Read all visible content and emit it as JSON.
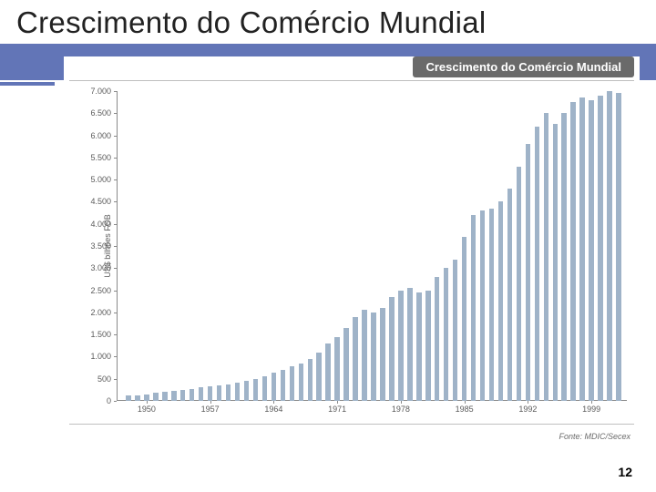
{
  "slide": {
    "title": "Crescimento do Comércio Mundial",
    "page_number": "12",
    "header_band_color": "#6275b7",
    "background_color": "#ffffff"
  },
  "chart": {
    "type": "bar",
    "title_pill": "Crescimento do Comércio Mundial",
    "title_pill_bg": "#6a6a6a",
    "title_pill_text_color": "#ffffff",
    "y_axis_label": "US$ bilhões FOB",
    "source": "Fonte: MDIC/Secex",
    "bar_color": "#9fb3c8",
    "axis_color": "#8a8a8a",
    "tick_label_color": "#5a5a5a",
    "tick_label_fontsize": 9,
    "ylim": [
      0,
      7000
    ],
    "ytick_step": 500,
    "xtick_years": [
      1950,
      1957,
      1964,
      1971,
      1978,
      1985,
      1992,
      1999
    ],
    "years_start": 1948,
    "years_end": 2002,
    "values": [
      120,
      130,
      140,
      180,
      200,
      220,
      240,
      270,
      310,
      340,
      360,
      380,
      420,
      450,
      500,
      560,
      640,
      700,
      780,
      850,
      940,
      1100,
      1300,
      1450,
      1650,
      1900,
      2050,
      2000,
      2100,
      2350,
      2500,
      2550,
      2450,
      2500,
      2800,
      3000,
      3200,
      3700,
      4200,
      4300,
      4350,
      4500,
      4800,
      5300,
      5800,
      6200,
      6500,
      6250,
      6500,
      6750,
      6850,
      6800,
      6900,
      7000,
      6950
    ],
    "bar_width_ratio": 0.55
  }
}
